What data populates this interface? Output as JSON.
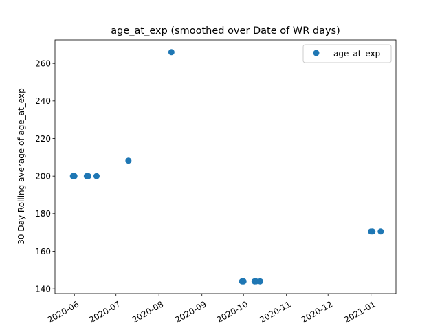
{
  "chart_data": {
    "type": "scatter",
    "title": "age_at_exp (smoothed over Date of WR days)",
    "xlabel": "",
    "ylabel": "30 Day Rolling average of age_at_exp",
    "x_tick_labels": [
      "2020-06",
      "2020-07",
      "2020-08",
      "2020-09",
      "2020-10",
      "2020-11",
      "2020-12",
      "2021-01"
    ],
    "y_tick_labels": [
      "140",
      "160",
      "180",
      "200",
      "220",
      "240",
      "260"
    ],
    "xlim": [
      "2020-05-18",
      "2021-01-19"
    ],
    "ylim": [
      137.5,
      272.5
    ],
    "grid": false,
    "legend_position": "top-right",
    "series": [
      {
        "name": "age_at_exp",
        "color": "#1f77b4",
        "marker": "circle",
        "points": [
          {
            "x": "2020-05-31",
            "y": 200
          },
          {
            "x": "2020-06-01",
            "y": 200
          },
          {
            "x": "2020-06-10",
            "y": 200
          },
          {
            "x": "2020-06-11",
            "y": 200
          },
          {
            "x": "2020-06-17",
            "y": 200
          },
          {
            "x": "2020-07-10",
            "y": 208.2
          },
          {
            "x": "2020-08-10",
            "y": 266
          },
          {
            "x": "2020-09-30",
            "y": 144
          },
          {
            "x": "2020-10-01",
            "y": 144
          },
          {
            "x": "2020-10-09",
            "y": 144
          },
          {
            "x": "2020-10-10",
            "y": 144
          },
          {
            "x": "2020-10-13",
            "y": 144
          },
          {
            "x": "2021-01-01",
            "y": 170.5
          },
          {
            "x": "2021-01-02",
            "y": 170.5
          },
          {
            "x": "2021-01-08",
            "y": 170.5
          }
        ]
      }
    ]
  }
}
